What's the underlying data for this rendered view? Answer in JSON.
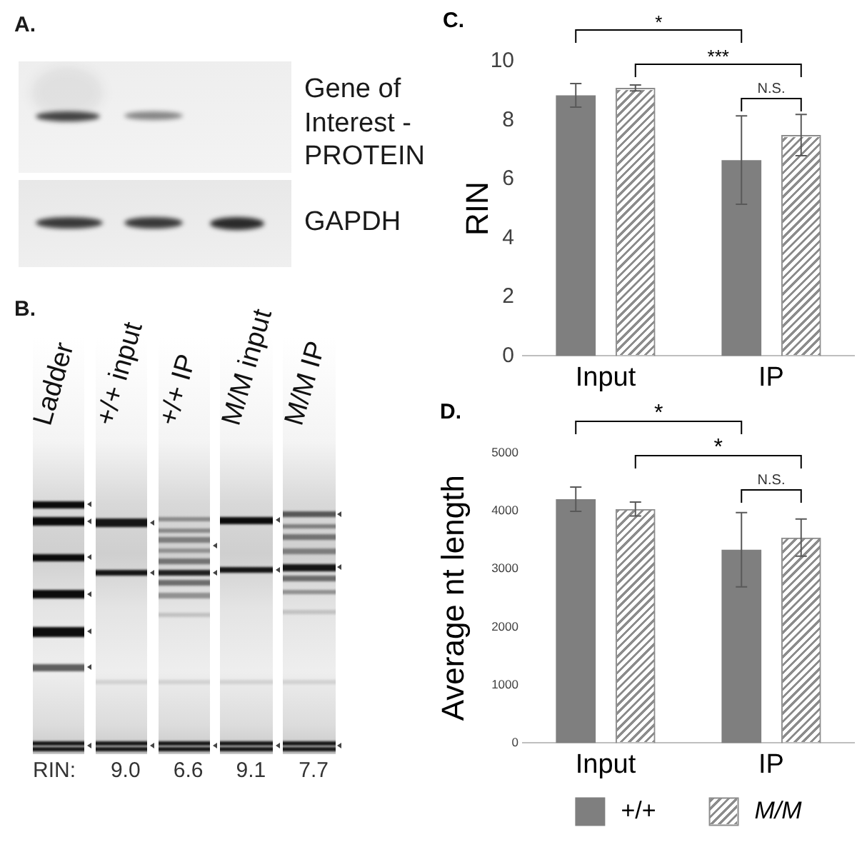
{
  "chart_data": [
    {
      "type": "other",
      "title": "A.",
      "annotations": [
        "Gene of Interest - PROTEIN",
        "GAPDH"
      ]
    },
    {
      "type": "other",
      "title": "B.",
      "categories": [
        "Ladder",
        "+/+ input",
        "+/+ IP",
        "M/M input",
        "M/M IP"
      ],
      "annotations": [
        "RIN:",
        "9.0",
        "6.6",
        "9.1",
        "7.7"
      ]
    },
    {
      "type": "bar",
      "title": "C.",
      "ylabel": "RIN",
      "categories": [
        "Input",
        "IP"
      ],
      "series": [
        {
          "color": "#7f7f7f",
          "values": [
            8.85,
            6.65
          ],
          "errors": [
            0.4,
            1.5
          ]
        },
        {
          "color": "#8c8c8c",
          "values": [
            9.1,
            7.5
          ],
          "errors": [
            0.1,
            0.7
          ]
        }
      ],
      "ylim": [
        0,
        10
      ],
      "yticks": [
        0,
        2,
        4,
        6,
        8,
        10
      ],
      "annotations": [
        "*",
        "***",
        "N.S."
      ]
    },
    {
      "type": "bar",
      "title": "D.",
      "ylabel": "Average nt length",
      "categories": [
        "Input",
        "IP"
      ],
      "series": [
        {
          "name": "+/+",
          "color": "#7f7f7f",
          "values": [
            4200,
            3330
          ],
          "errors": [
            210,
            640
          ]
        },
        {
          "name": "M/M",
          "color": "#8c8c8c",
          "values": [
            4030,
            3540
          ],
          "errors": [
            120,
            320
          ]
        }
      ],
      "ylim": [
        0,
        5000
      ],
      "yticks": [
        0,
        1000,
        2000,
        3000,
        4000,
        5000
      ],
      "legend": "bottom",
      "annotations": [
        "*",
        "*",
        "N.S."
      ]
    }
  ]
}
